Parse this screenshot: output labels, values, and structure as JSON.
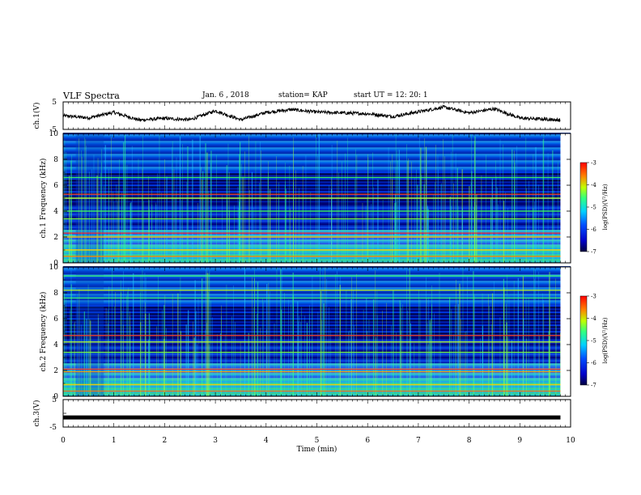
{
  "header": {
    "title": "VLF Spectra",
    "date": "Jan. 6 , 2018",
    "station": "station= KAP",
    "start": "start UT = 12: 20: 1"
  },
  "chart_data": [
    {
      "type": "line",
      "panel": "ch1-waveform",
      "ylabel": "ch.1(V)",
      "ylim": [
        -5,
        5
      ],
      "yticks": [
        "5",
        "-5"
      ],
      "xlim": [
        0,
        10
      ],
      "x_end": 9.8,
      "x": [
        0,
        0.5,
        1,
        1.5,
        2,
        2.5,
        3,
        3.5,
        4,
        4.5,
        5,
        5.5,
        6,
        6.5,
        7,
        7.5,
        8,
        8.5,
        9,
        9.5,
        9.8
      ],
      "y": [
        0,
        -0.8,
        1.2,
        -1.6,
        -1.0,
        -1.5,
        1.8,
        -1.5,
        1.2,
        2.2,
        1.3,
        1.0,
        0.7,
        -0.3,
        1.4,
        3.1,
        1.0,
        2.5,
        -0.9,
        -1.3,
        -1.6
      ]
    },
    {
      "type": "heatmap",
      "panel": "ch1-spectrogram",
      "ylabel": "ch.1 Frequency (kHz)",
      "xlim": [
        0,
        10
      ],
      "ylim": [
        0,
        10
      ],
      "yticks": [
        "0",
        "2",
        "4",
        "6",
        "8",
        "10"
      ],
      "colorbar": {
        "label": "log(PSD)(V²/Hz)",
        "range": [
          -7,
          -3
        ],
        "ticks": [
          "-3",
          "-4",
          "-5",
          "-6",
          "-7"
        ]
      }
    },
    {
      "type": "heatmap",
      "panel": "ch2-spectrogram",
      "ylabel": "ch.2 Frequency (kHz)",
      "xlim": [
        0,
        10
      ],
      "ylim": [
        0,
        10
      ],
      "yticks": [
        "0",
        "2",
        "4",
        "6",
        "8",
        "10"
      ],
      "colorbar": {
        "label": "log(PSD)(V²/Hz)",
        "range": [
          -7,
          -3
        ],
        "ticks": [
          "-3",
          "-4",
          "-5",
          "-6",
          "-7"
        ]
      }
    },
    {
      "type": "line",
      "panel": "ch3-waveform",
      "ylabel": "ch.3(V)",
      "ylim": [
        -5,
        5
      ],
      "yticks": [
        "5",
        "-5"
      ],
      "xlim": [
        0,
        10
      ],
      "x": [
        0,
        9.8
      ],
      "y": [
        -1.5,
        -1.5
      ]
    }
  ],
  "xaxis": {
    "label": "Time (min)",
    "ticks": [
      "0",
      "1",
      "2",
      "3",
      "4",
      "5",
      "6",
      "7",
      "8",
      "9",
      "10"
    ]
  }
}
